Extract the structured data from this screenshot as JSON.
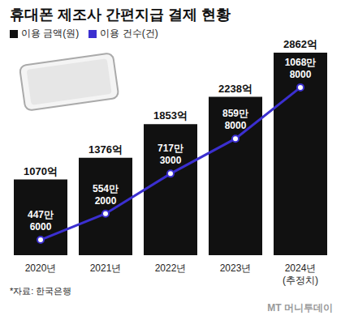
{
  "chart_data": {
    "type": "bar",
    "title": "휴대폰 제조사 간편지급 결제 현황",
    "source": "*자료: 한국은행",
    "watermark": "MT 머니투데이",
    "categories": [
      "2020년",
      "2021년",
      "2022년",
      "2023년",
      "2024년\n(추정치)"
    ],
    "series": [
      {
        "name": "이용 금액(원)",
        "type": "bar",
        "color": "#111111",
        "values": [
          1070,
          1376,
          1853,
          2238,
          2862
        ],
        "value_labels": [
          "1070억",
          "1376억",
          "1853억",
          "2238억",
          "2862억"
        ]
      },
      {
        "name": "이용 건수(건)",
        "type": "line",
        "axis": "y2",
        "color": "#3b2fd0",
        "marker": "circle",
        "values": [
          4476000,
          5542000,
          7173000,
          8598000,
          10688000
        ],
        "value_labels": [
          "447만\n6000",
          "554만\n2000",
          "717만\n3000",
          "859만\n8000",
          "1068만\n8000"
        ]
      }
    ],
    "ylim": [
      0,
      3000
    ],
    "y2lim": [
      3850000,
      12500000
    ],
    "tick_labels": "x",
    "legend": "top-left",
    "data_labels": true
  }
}
